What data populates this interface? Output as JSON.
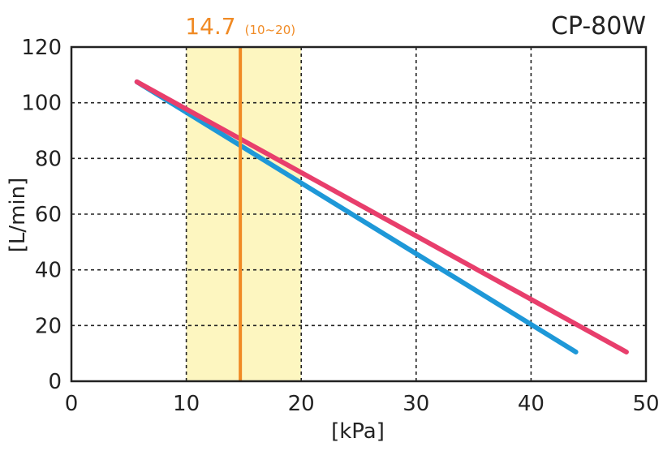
{
  "chart_data": {
    "type": "line",
    "title": "CP-80W",
    "xlabel": "[kPa]",
    "ylabel": "[L/min]",
    "xlim": [
      0,
      50
    ],
    "ylim": [
      0,
      120
    ],
    "x_ticks": [
      "0",
      "10",
      "20",
      "30",
      "40",
      "50"
    ],
    "y_ticks": [
      "0",
      "20",
      "40",
      "60",
      "80",
      "100",
      "120"
    ],
    "grid": true,
    "highlight_band": {
      "from": 10,
      "to": 20,
      "color": "#fdf6c0"
    },
    "marker": {
      "x": 14.7,
      "label": "14.7",
      "range_label": "(10~20)",
      "color": "#f08a24"
    },
    "series": [
      {
        "color": "#1e98d8",
        "points": [
          [
            5.7,
            107.5
          ],
          [
            43.9,
            10.5
          ]
        ]
      },
      {
        "color": "#e83e6c",
        "points": [
          [
            5.7,
            107.5
          ],
          [
            48.3,
            10.5
          ]
        ]
      }
    ]
  }
}
